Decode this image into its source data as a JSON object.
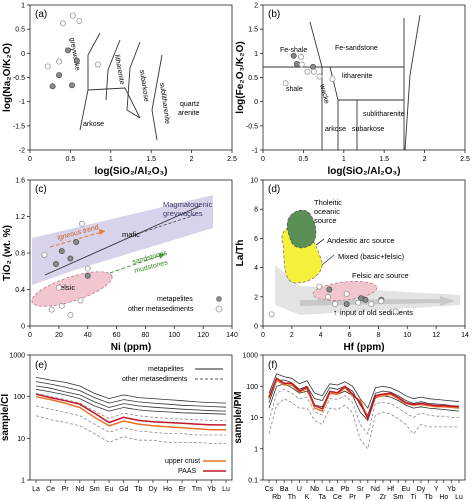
{
  "chart_data": [
    {
      "panel": "(a)",
      "type": "scatter",
      "xlabel": "log(SiO₂/Al₂O₃)",
      "ylabel": "log(Na₂O/K₂O)",
      "xlim": [
        0,
        2.5
      ],
      "ylim": [
        -2,
        1
      ],
      "xticks": [
        "0",
        "0.5",
        "1",
        "1.5",
        "2",
        "2.5"
      ],
      "yticks": [
        "-2",
        "-1.5",
        "-1",
        "-0.5",
        "0",
        "0.5",
        "1"
      ],
      "field_labels": [
        "greywacke",
        "litharenite",
        "subarkose",
        "sublitharenite",
        "quartz arenite",
        "arkose"
      ],
      "series": [
        {
          "name": "metapelites",
          "x": [
            0.36,
            0.28,
            0.47,
            0.58,
            0.52
          ],
          "y": [
            -0.45,
            -0.68,
            0.06,
            -0.15,
            -0.66
          ]
        },
        {
          "name": "other metasediments",
          "x": [
            0.53,
            0.61,
            0.41,
            0.36,
            0.22,
            0.84
          ],
          "y": [
            0.78,
            0.67,
            0.62,
            -0.17,
            -0.27,
            -0.23
          ]
        }
      ]
    },
    {
      "panel": "(b)",
      "type": "scatter",
      "xlabel": "log(SiO₂/Al₂O₃)",
      "ylabel": "log(Fe₂O₃/K₂O)",
      "xlim": [
        0,
        2.5
      ],
      "ylim": [
        -1,
        2
      ],
      "xticks": [
        "0",
        "0.5",
        "1",
        "1.5",
        "2",
        "2.5"
      ],
      "yticks": [
        "-1",
        "-0.5",
        "0",
        "0.5",
        "1",
        "1.5",
        "2"
      ],
      "field_labels": [
        "Fe-shale",
        "Fe-sandstone",
        "litharenite",
        "shale",
        "wacke",
        "sublitharenite",
        "arkose",
        "subarkose"
      ],
      "series": [
        {
          "name": "metapelites",
          "x": [
            0.42,
            0.62,
            0.38
          ],
          "y": [
            0.78,
            0.72,
            0.95
          ]
        },
        {
          "name": "other metasediments",
          "x": [
            0.47,
            0.55,
            0.63,
            0.7,
            0.86,
            0.48,
            0.28
          ],
          "y": [
            0.93,
            0.62,
            0.62,
            0.52,
            0.47,
            0.77,
            0.38
          ]
        }
      ]
    },
    {
      "panel": "(c)",
      "type": "scatter",
      "xlabel": "Ni (ppm)",
      "ylabel": "TiO₂ (wt. %)",
      "xlim": [
        0,
        140
      ],
      "ylim": [
        0,
        1.6
      ],
      "xticks": [
        "0",
        "20",
        "40",
        "60",
        "80",
        "100",
        "120",
        "140"
      ],
      "yticks": [
        "0",
        "0.4",
        "0.8",
        "1.2",
        "1.6"
      ],
      "annotations": [
        "Magmatogenic greywackes",
        "igneous trend",
        "mafic",
        "felsic",
        "sandstones mudstones"
      ],
      "legend": [
        "metapelites",
        "other metasediments"
      ],
      "series": [
        {
          "name": "metapelites",
          "x": [
            22,
            32,
            18,
            28,
            40
          ],
          "y": [
            0.82,
            0.92,
            0.68,
            0.74,
            0.55
          ]
        },
        {
          "name": "other metasediments",
          "x": [
            15,
            22,
            28,
            35,
            20,
            10,
            40,
            36
          ],
          "y": [
            0.18,
            0.22,
            0.12,
            0.28,
            0.42,
            0.78,
            0.63,
            1.12
          ]
        }
      ]
    },
    {
      "panel": "(d)",
      "type": "scatter",
      "xlabel": "Hf (ppm)",
      "ylabel": "La/Th",
      "xlim": [
        0,
        14
      ],
      "ylim": [
        0,
        10
      ],
      "xticks": [
        "0",
        "2",
        "4",
        "6",
        "8",
        "10",
        "12",
        "14"
      ],
      "yticks": [
        "0",
        "2",
        "4",
        "6",
        "8",
        "10"
      ],
      "annotations": [
        "Tholeitic oceanic source",
        "Andesitic arc source",
        "Mixed (basic+felsic)",
        "Felsic arc source",
        "input of old sediments"
      ],
      "series": [
        {
          "name": "metapelites",
          "x": [
            4.6,
            5.8,
            6.8,
            7.1,
            8.2
          ],
          "y": [
            2.5,
            1.5,
            1.9,
            1.8,
            1.8
          ]
        },
        {
          "name": "other metasediments",
          "x": [
            3.9,
            4.5,
            5.0,
            5.8,
            6.6,
            7.5,
            8.2,
            9.2,
            0.6
          ],
          "y": [
            2.7,
            2.0,
            1.5,
            2.2,
            1.6,
            1.5,
            1.7,
            1.0,
            0.8
          ]
        }
      ]
    },
    {
      "panel": "(e)",
      "type": "line",
      "ylabel": "sample/CI",
      "yscale": "log",
      "ylim": [
        1,
        1000
      ],
      "yticks": [
        "1",
        "10",
        "100",
        "1000"
      ],
      "categories": [
        "La",
        "Ce",
        "Pr",
        "Nd",
        "Sm",
        "Eu",
        "Gd",
        "Tb",
        "Dy",
        "Ho",
        "Er",
        "Tm",
        "Yb",
        "Lu"
      ],
      "legend": [
        "metapelites",
        "other metasediments",
        "upper crust",
        "PAAS"
      ],
      "series": [
        {
          "name": "metapelites",
          "values": [
            290,
            250,
            220,
            180,
            120,
            90,
            110,
            95,
            90,
            85,
            80,
            75,
            72,
            70
          ]
        },
        {
          "name": "metapelites",
          "values": [
            230,
            200,
            170,
            140,
            95,
            70,
            85,
            75,
            70,
            66,
            62,
            60,
            58,
            56
          ]
        },
        {
          "name": "metapelites",
          "values": [
            180,
            160,
            130,
            110,
            75,
            55,
            68,
            60,
            56,
            53,
            50,
            48,
            46,
            45
          ]
        },
        {
          "name": "metapelites",
          "values": [
            150,
            130,
            110,
            90,
            60,
            45,
            55,
            48,
            45,
            43,
            41,
            40,
            39,
            38
          ]
        },
        {
          "name": "other metasediments",
          "values": [
            120,
            100,
            85,
            70,
            45,
            30,
            40,
            35,
            32,
            30,
            29,
            28,
            27,
            27
          ]
        },
        {
          "name": "other metasediments",
          "values": [
            60,
            50,
            42,
            35,
            22,
            14,
            18,
            15,
            14,
            13,
            13,
            12,
            12,
            12
          ]
        },
        {
          "name": "other metasediments",
          "values": [
            35,
            28,
            24,
            20,
            13,
            8,
            11,
            9,
            9,
            8,
            8,
            8,
            7.5,
            7.5
          ]
        },
        {
          "name": "upper crust",
          "values": [
            100,
            85,
            70,
            55,
            32,
            20,
            26,
            22,
            20,
            19,
            18,
            17,
            16,
            16
          ]
        },
        {
          "name": "PAAS",
          "values": [
            115,
            95,
            80,
            66,
            40,
            24,
            32,
            27,
            25,
            24,
            23,
            22,
            21,
            21
          ]
        }
      ]
    },
    {
      "panel": "(f)",
      "type": "line",
      "ylabel": "sample/PM",
      "yscale": "log",
      "ylim": [
        0.1,
        1000
      ],
      "yticks": [
        "0.1",
        "1",
        "10",
        "100",
        "1000"
      ],
      "categories": [
        "Cs",
        "Rb",
        "Ba",
        "Th",
        "U",
        "K",
        "Nb",
        "Ta",
        "La",
        "Ce",
        "Pb",
        "Pr",
        "Sr",
        "P",
        "Nd",
        "Zr",
        "Hf",
        "Sm",
        "Eu",
        "Ti",
        "Dy",
        "Tb",
        "Y",
        "Ho",
        "Yb",
        "Lu"
      ],
      "series": [
        {
          "name": "metapelites",
          "values": [
            60,
            250,
            200,
            180,
            120,
            150,
            60,
            50,
            120,
            110,
            140,
            100,
            40,
            20,
            90,
            100,
            90,
            70,
            50,
            40,
            45,
            40,
            38,
            36,
            34,
            32
          ]
        },
        {
          "name": "metapelites",
          "values": [
            30,
            150,
            160,
            130,
            80,
            100,
            40,
            35,
            90,
            80,
            100,
            70,
            25,
            12,
            60,
            70,
            65,
            50,
            35,
            28,
            32,
            28,
            27,
            26,
            24,
            23
          ]
        },
        {
          "name": "metapelites",
          "values": [
            20,
            100,
            120,
            90,
            60,
            70,
            25,
            22,
            60,
            55,
            70,
            50,
            15,
            8,
            42,
            50,
            45,
            35,
            25,
            20,
            22,
            20,
            19,
            18,
            17,
            16
          ]
        },
        {
          "name": "other metasediments",
          "values": [
            8,
            60,
            80,
            60,
            40,
            45,
            15,
            12,
            40,
            38,
            50,
            30,
            6,
            3,
            28,
            30,
            28,
            20,
            14,
            10,
            14,
            12,
            11,
            11,
            10,
            10
          ]
        },
        {
          "name": "other metasediments",
          "values": [
            3,
            25,
            40,
            30,
            20,
            20,
            8,
            6,
            20,
            18,
            25,
            14,
            2,
            1,
            12,
            15,
            13,
            9,
            6,
            3,
            6,
            5,
            5,
            5,
            5,
            5
          ]
        },
        {
          "name": "upper crust",
          "values": [
            40,
            160,
            110,
            110,
            65,
            85,
            20,
            16,
            60,
            55,
            90,
            50,
            35,
            10,
            45,
            50,
            55,
            40,
            28,
            25,
            26,
            24,
            22,
            22,
            21,
            20
          ]
        },
        {
          "name": "PAAS",
          "values": [
            45,
            180,
            125,
            125,
            70,
            95,
            24,
            19,
            68,
            62,
            100,
            56,
            30,
            9,
            50,
            56,
            60,
            44,
            30,
            26,
            28,
            26,
            24,
            24,
            23,
            22
          ]
        }
      ]
    }
  ],
  "text": {
    "a_panel": "(a)",
    "b_panel": "(b)",
    "c_panel": "(c)",
    "d_panel": "(d)",
    "e_panel": "(e)",
    "f_panel": "(f)",
    "a_greywacke": "greywacke",
    "a_litharenite": "litharenite",
    "a_subarkose": "subarkose",
    "a_sublitharenite": "sublitharenite",
    "a_quartz": "quartz",
    "a_arenite": "arenite",
    "a_arkose": "arkose",
    "b_feshale": "Fe-shale",
    "b_fesandstone": "Fe-sandstone",
    "b_litharenite": "litharenite",
    "b_shale": "shale",
    "b_wacke": "wacke",
    "b_sublitharenite": "sublitharenite",
    "b_arkose": "arkose",
    "b_subarkose": "subarkose",
    "c_magmatogenic": "Magmatogenic",
    "c_greywackes": "greywackes",
    "c_igneous": "igneous trend",
    "c_mafic": "mafic",
    "c_felsic": "felsic",
    "c_sandstones": "sandstones",
    "c_mudstones": "mudstones",
    "c_leg_meta": "metapelites",
    "c_leg_other": "other metasediments",
    "d_tholeitic": "Tholeitic",
    "d_oceanic": "oceanic",
    "d_source": "source",
    "d_andesitic": "Andesitic arc source",
    "d_mixed": "Mixed (basic+felsic)",
    "d_felsic": "Felsic arc source",
    "d_input": "input of old sediments",
    "e_leg_meta": "metapelites",
    "e_leg_other": "other metasediments",
    "e_leg_uc": "upper crust",
    "e_leg_paas": "PAAS"
  },
  "colors": {
    "upper_crust": "#e8732a",
    "paas": "#c0182a",
    "tholeitic": "#5a8f55",
    "andesitic": "#f5f03a",
    "mixed": "#c8c8c8",
    "felsic": "#f1c6cf",
    "magmatogenic": "#d8d2ea",
    "felsic_c": "#f1c6cf",
    "igneous_trend": "#e07f3a",
    "sandstones": "#4a9a3a"
  }
}
